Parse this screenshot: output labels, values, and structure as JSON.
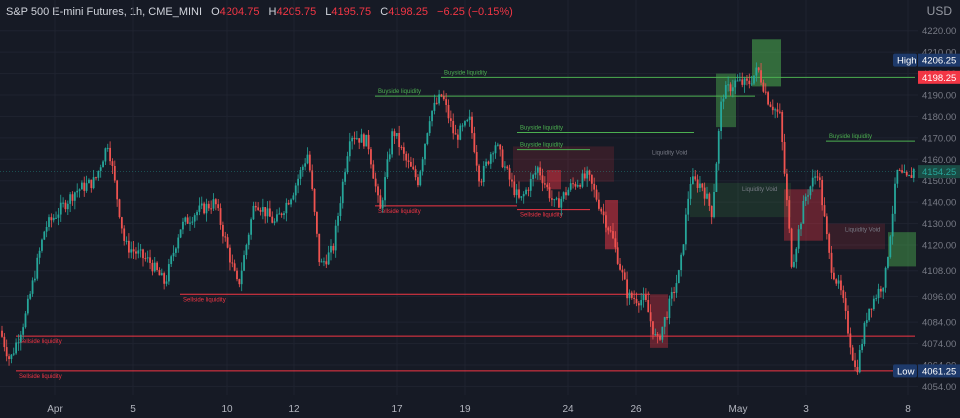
{
  "header": {
    "symbol": "S&P 500 E-mini Futures, 1h, CME_MINI",
    "open_key": "O",
    "open": "4204.75",
    "high_key": "H",
    "high": "4205.75",
    "low_key": "L",
    "low": "4195.75",
    "close_key": "C",
    "close": "4198.25",
    "change": "−6.25 (−0.15%)",
    "currency": "USD"
  },
  "chart_data": {
    "type": "candlestick",
    "x_ticks": [
      "Apr",
      "5",
      "10",
      "12",
      "17",
      "19",
      "24",
      "26",
      "May",
      "3",
      "8"
    ],
    "y_ticks": [
      4054.0,
      4064.0,
      4074.0,
      4084.0,
      4096.0,
      4108.0,
      4120.0,
      4130.0,
      4140.0,
      4150.0,
      4160.0,
      4170.0,
      4180.0,
      4190.0,
      4200.0,
      4210.0,
      4220.0
    ],
    "ylim": [
      4050,
      4225
    ],
    "price_path": [
      [
        0,
        4080
      ],
      [
        10,
        4066
      ],
      [
        25,
        4086
      ],
      [
        45,
        4128
      ],
      [
        75,
        4145
      ],
      [
        95,
        4150
      ],
      [
        108,
        4168
      ],
      [
        125,
        4120
      ],
      [
        150,
        4112
      ],
      [
        165,
        4102
      ],
      [
        180,
        4128
      ],
      [
        195,
        4135
      ],
      [
        215,
        4140
      ],
      [
        238,
        4100
      ],
      [
        255,
        4141
      ],
      [
        275,
        4130
      ],
      [
        293,
        4145
      ],
      [
        308,
        4163
      ],
      [
        320,
        4110
      ],
      [
        333,
        4118
      ],
      [
        350,
        4172
      ],
      [
        368,
        4168
      ],
      [
        380,
        4135
      ],
      [
        393,
        4174
      ],
      [
        405,
        4160
      ],
      [
        418,
        4150
      ],
      [
        430,
        4181
      ],
      [
        442,
        4190
      ],
      [
        455,
        4170
      ],
      [
        470,
        4178
      ],
      [
        480,
        4150
      ],
      [
        495,
        4168
      ],
      [
        510,
        4150
      ],
      [
        520,
        4140
      ],
      [
        538,
        4156
      ],
      [
        555,
        4138
      ],
      [
        572,
        4148
      ],
      [
        588,
        4152
      ],
      [
        600,
        4138
      ],
      [
        612,
        4124
      ],
      [
        628,
        4096
      ],
      [
        645,
        4094
      ],
      [
        657,
        4074
      ],
      [
        668,
        4090
      ],
      [
        680,
        4108
      ],
      [
        690,
        4150
      ],
      [
        702,
        4148
      ],
      [
        712,
        4135
      ],
      [
        722,
        4190
      ],
      [
        735,
        4196
      ],
      [
        748,
        4195
      ],
      [
        758,
        4202
      ],
      [
        768,
        4188
      ],
      [
        780,
        4180
      ],
      [
        792,
        4110
      ],
      [
        805,
        4142
      ],
      [
        818,
        4155
      ],
      [
        830,
        4112
      ],
      [
        842,
        4096
      ],
      [
        856,
        4060
      ],
      [
        868,
        4090
      ],
      [
        885,
        4104
      ],
      [
        897,
        4154
      ],
      [
        908,
        4150
      ],
      [
        915,
        4156
      ]
    ],
    "levels": [
      {
        "label": "Buyside liquidity",
        "price": 4198.25,
        "x_from": "Apr 18",
        "x_to": "May 8",
        "color": "#4caf50"
      },
      {
        "label": "Buyside liquidity",
        "price": 4189.5,
        "x_from": "Apr 14",
        "x_to": "May 2",
        "color": "#4caf50"
      },
      {
        "label": "Buyside liquidity",
        "price": 4172.5,
        "x_from": "Apr 21",
        "x_to": "Apr 28",
        "color": "#4caf50"
      },
      {
        "label": "Buyside liquidity",
        "price": 4164.5,
        "x_from": "Apr 21",
        "x_to": "Apr 25",
        "color": "#4caf50"
      },
      {
        "label": "Buyside liquidity",
        "price": 4168.5,
        "x_from": "May 3",
        "x_to": "May 8",
        "color": "#4caf50"
      },
      {
        "label": "Sellside liquidity",
        "price": 4138.25,
        "x_from": "Apr 14",
        "x_to": "Apr 21",
        "color": "#f23645"
      },
      {
        "label": "Sellside liquidity",
        "price": 4136.5,
        "x_from": "Apr 21",
        "x_to": "Apr 25",
        "color": "#f23645"
      },
      {
        "label": "Sellside liquidity",
        "price": 4097.0,
        "x_from": "Apr 6",
        "x_to": "Apr 27",
        "color": "#f23645"
      },
      {
        "label": "Sellside liquidity",
        "price": 4077.5,
        "x_from": "Apr 3",
        "x_to": "May 8",
        "color": "#f23645"
      },
      {
        "label": "Sellside liquidity",
        "price": 4061.25,
        "x_from": "Apr 3",
        "x_to": "May 8",
        "color": "#f23645"
      }
    ],
    "voids": [
      {
        "label": "Liquidity Void",
        "price_from": 4149.5,
        "price_to": 4166.0,
        "color": "#f23645"
      },
      {
        "label": "Liquidity Void",
        "price_from": 4133.0,
        "price_to": 4149.0,
        "color": "#4caf50"
      },
      {
        "label": "Liquidity Void",
        "price_from": 4118.0,
        "price_to": 4130.0,
        "color": "#f23645"
      }
    ],
    "price_labels": [
      {
        "name": "high",
        "text": "High",
        "value": "4206.25",
        "price": 4206.25,
        "color": "#1e3a6b"
      },
      {
        "name": "last",
        "text": "",
        "value": "4198.25",
        "price": 4198.25,
        "color": "#f23645"
      },
      {
        "name": "current",
        "text": "",
        "value": "4154.25",
        "price": 4154.25,
        "color": "#1a4c45"
      },
      {
        "name": "low",
        "text": "Low",
        "value": "4061.25",
        "price": 4061.25,
        "color": "#1e3a6b"
      }
    ],
    "grid": true
  }
}
